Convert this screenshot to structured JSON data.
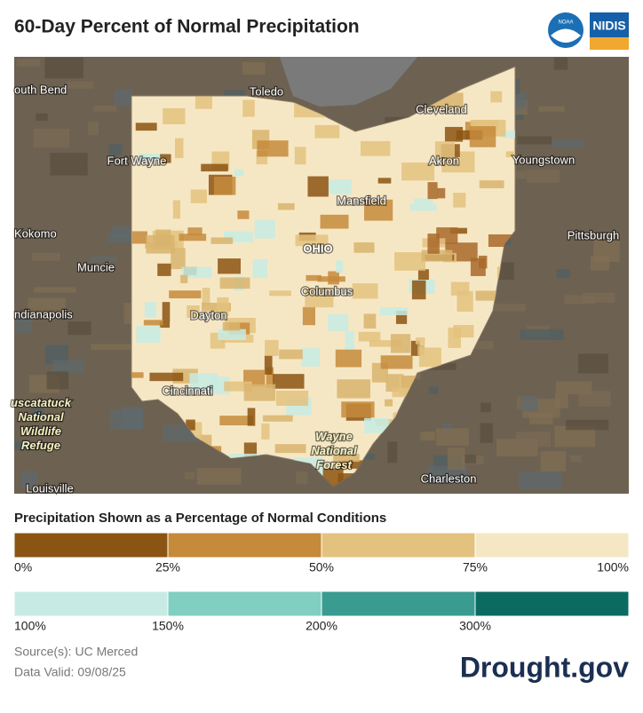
{
  "header": {
    "title": "60-Day Percent of Normal Precipitation",
    "logos": [
      "NOAA",
      "NIDIS"
    ]
  },
  "map": {
    "places": [
      {
        "label": "outh Bend"
      },
      {
        "label": "Toledo"
      },
      {
        "label": "Cleveland"
      },
      {
        "label": "Fort Wayne"
      },
      {
        "label": "Akron"
      },
      {
        "label": "Youngstown"
      },
      {
        "label": "Mansfield"
      },
      {
        "label": "Kokomo"
      },
      {
        "label": "OHIO"
      },
      {
        "label": "Pittsburgh"
      },
      {
        "label": "Muncie"
      },
      {
        "label": "Columbus"
      },
      {
        "label": "ndianapolis"
      },
      {
        "label": "Dayton"
      },
      {
        "label": "Cincinnati"
      },
      {
        "label": "uscatatuck National Wildlife Refuge"
      },
      {
        "label": "Wayne National Forest"
      },
      {
        "label": "Charleston"
      },
      {
        "label": "Louisville"
      }
    ]
  },
  "legend": {
    "title": "Precipitation Shown as a Percentage of Normal Conditions",
    "dry": {
      "colors": [
        "#8b5412",
        "#c68a3b",
        "#e3c27f",
        "#f6e7c4"
      ],
      "labels": [
        "0%",
        "25%",
        "50%",
        "75%",
        "100%"
      ]
    },
    "wet": {
      "colors": [
        "#c7ebe4",
        "#80cfc0",
        "#3a9b91",
        "#0b6b61"
      ],
      "labels": [
        "100%",
        "150%",
        "200%",
        "300%"
      ]
    }
  },
  "footer": {
    "source": "Source(s): UC Merced",
    "valid": "Data Valid: 09/08/25",
    "brand": "Drought.gov"
  }
}
